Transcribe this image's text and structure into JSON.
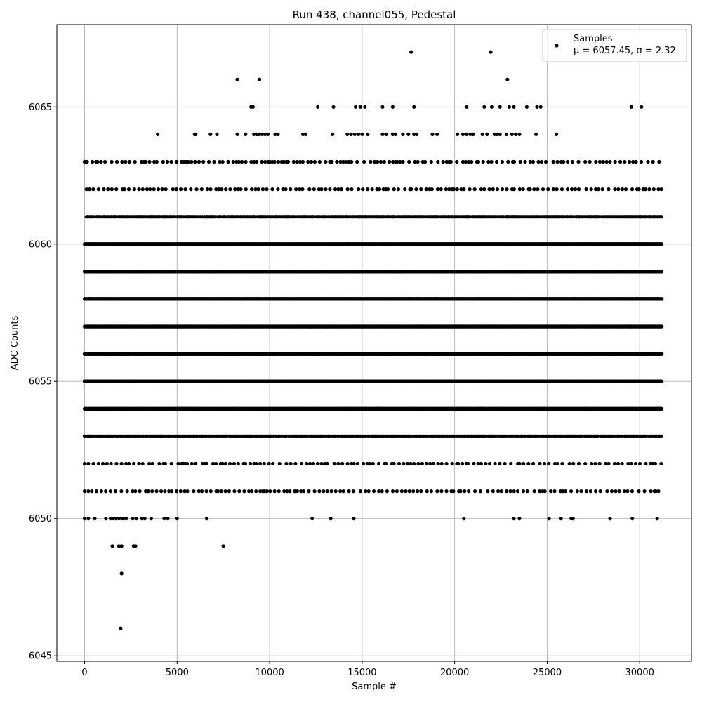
{
  "chart_data": {
    "type": "scatter",
    "title": "Run 438, channel055, Pedestal",
    "xlabel": "Sample #",
    "ylabel": "ADC Counts",
    "xlim": [
      -1500,
      32800
    ],
    "ylim": [
      6044.8,
      6068.0
    ],
    "xticks": [
      0,
      5000,
      10000,
      15000,
      20000,
      25000,
      30000
    ],
    "yticks": [
      6045,
      6050,
      6055,
      6060,
      6065
    ],
    "grid": true,
    "legend_position": "top-right",
    "marker_color": "#000000",
    "series": [
      {
        "name": "Samples",
        "stats_label": "μ = 6057.45, σ = 2.32",
        "x_range": [
          0,
          31200
        ],
        "level_bands": [
          {
            "y": 6054,
            "x_start": 0,
            "x_end": 31200,
            "density": "dense"
          },
          {
            "y": 6055,
            "x_start": 0,
            "x_end": 31200,
            "density": "dense"
          },
          {
            "y": 6056,
            "x_start": 0,
            "x_end": 31200,
            "density": "dense"
          },
          {
            "y": 6057,
            "x_start": 0,
            "x_end": 31200,
            "density": "dense"
          },
          {
            "y": 6058,
            "x_start": 0,
            "x_end": 31200,
            "density": "dense"
          },
          {
            "y": 6059,
            "x_start": 0,
            "x_end": 31200,
            "density": "dense"
          },
          {
            "y": 6060,
            "x_start": 0,
            "x_end": 31200,
            "density": "dense"
          },
          {
            "y": 6053,
            "x_start": 0,
            "x_end": 31200,
            "density": "medium"
          },
          {
            "y": 6061,
            "x_start": 100,
            "x_end": 31200,
            "density": "medium"
          },
          {
            "y": 6062,
            "x_start": 100,
            "x_end": 31200,
            "density": "sparse"
          },
          {
            "y": 6052,
            "x_start": 0,
            "x_end": 31200,
            "density": "sparse"
          },
          {
            "y": 6051,
            "x_start": 0,
            "x_end": 31200,
            "density": "sparse"
          },
          {
            "y": 6063,
            "x_start": 0,
            "x_end": 31200,
            "density": "sparse"
          }
        ],
        "points": [
          {
            "x": 0,
            "y": 6050
          },
          {
            "x": 200,
            "y": 6050
          },
          {
            "x": 550,
            "y": 6050
          },
          {
            "x": 1150,
            "y": 6050
          },
          {
            "x": 1400,
            "y": 6050
          },
          {
            "x": 1550,
            "y": 6050
          },
          {
            "x": 1700,
            "y": 6050
          },
          {
            "x": 1850,
            "y": 6050
          },
          {
            "x": 2000,
            "y": 6050
          },
          {
            "x": 2100,
            "y": 6050
          },
          {
            "x": 2250,
            "y": 6050
          },
          {
            "x": 2600,
            "y": 6050
          },
          {
            "x": 2800,
            "y": 6050
          },
          {
            "x": 3100,
            "y": 6050
          },
          {
            "x": 3250,
            "y": 6050
          },
          {
            "x": 3600,
            "y": 6050
          },
          {
            "x": 4300,
            "y": 6050
          },
          {
            "x": 4500,
            "y": 6050
          },
          {
            "x": 5000,
            "y": 6050
          },
          {
            "x": 6600,
            "y": 6050
          },
          {
            "x": 12300,
            "y": 6050
          },
          {
            "x": 13300,
            "y": 6050
          },
          {
            "x": 14550,
            "y": 6050
          },
          {
            "x": 20500,
            "y": 6050
          },
          {
            "x": 23200,
            "y": 6050
          },
          {
            "x": 23500,
            "y": 6050
          },
          {
            "x": 25100,
            "y": 6050
          },
          {
            "x": 25750,
            "y": 6050
          },
          {
            "x": 26300,
            "y": 6050
          },
          {
            "x": 26400,
            "y": 6050
          },
          {
            "x": 28400,
            "y": 6050
          },
          {
            "x": 29600,
            "y": 6050
          },
          {
            "x": 30950,
            "y": 6050
          },
          {
            "x": 1500,
            "y": 6049
          },
          {
            "x": 1850,
            "y": 6049
          },
          {
            "x": 2000,
            "y": 6049
          },
          {
            "x": 2650,
            "y": 6049
          },
          {
            "x": 2750,
            "y": 6049
          },
          {
            "x": 7500,
            "y": 6049
          },
          {
            "x": 2000,
            "y": 6048
          },
          {
            "x": 1950,
            "y": 6046
          },
          {
            "x": 100,
            "y": 6063
          },
          {
            "x": 700,
            "y": 6063
          },
          {
            "x": 3950,
            "y": 6064
          },
          {
            "x": 5950,
            "y": 6064
          },
          {
            "x": 6000,
            "y": 6064
          },
          {
            "x": 6800,
            "y": 6064
          },
          {
            "x": 7150,
            "y": 6064
          },
          {
            "x": 8250,
            "y": 6064
          },
          {
            "x": 8700,
            "y": 6064
          },
          {
            "x": 9150,
            "y": 6064
          },
          {
            "x": 9300,
            "y": 6064
          },
          {
            "x": 9450,
            "y": 6064
          },
          {
            "x": 9600,
            "y": 6064
          },
          {
            "x": 9750,
            "y": 6064
          },
          {
            "x": 9900,
            "y": 6064
          },
          {
            "x": 10300,
            "y": 6064
          },
          {
            "x": 10450,
            "y": 6064
          },
          {
            "x": 11800,
            "y": 6064
          },
          {
            "x": 11950,
            "y": 6064
          },
          {
            "x": 13400,
            "y": 6064
          },
          {
            "x": 14200,
            "y": 6064
          },
          {
            "x": 14400,
            "y": 6064
          },
          {
            "x": 14600,
            "y": 6064
          },
          {
            "x": 14800,
            "y": 6064
          },
          {
            "x": 15000,
            "y": 6064
          },
          {
            "x": 15300,
            "y": 6064
          },
          {
            "x": 16100,
            "y": 6064
          },
          {
            "x": 16300,
            "y": 6064
          },
          {
            "x": 16650,
            "y": 6064
          },
          {
            "x": 16800,
            "y": 6064
          },
          {
            "x": 17200,
            "y": 6064
          },
          {
            "x": 17500,
            "y": 6064
          },
          {
            "x": 17800,
            "y": 6064
          },
          {
            "x": 17950,
            "y": 6064
          },
          {
            "x": 18800,
            "y": 6064
          },
          {
            "x": 19050,
            "y": 6064
          },
          {
            "x": 20150,
            "y": 6064
          },
          {
            "x": 20450,
            "y": 6064
          },
          {
            "x": 20650,
            "y": 6064
          },
          {
            "x": 20850,
            "y": 6064
          },
          {
            "x": 21000,
            "y": 6064
          },
          {
            "x": 21500,
            "y": 6064
          },
          {
            "x": 21750,
            "y": 6064
          },
          {
            "x": 22150,
            "y": 6064
          },
          {
            "x": 22300,
            "y": 6064
          },
          {
            "x": 22450,
            "y": 6064
          },
          {
            "x": 22800,
            "y": 6064
          },
          {
            "x": 23100,
            "y": 6064
          },
          {
            "x": 23300,
            "y": 6064
          },
          {
            "x": 23500,
            "y": 6064
          },
          {
            "x": 24400,
            "y": 6064
          },
          {
            "x": 25500,
            "y": 6064
          },
          {
            "x": 9000,
            "y": 6065
          },
          {
            "x": 9100,
            "y": 6065
          },
          {
            "x": 12600,
            "y": 6065
          },
          {
            "x": 13450,
            "y": 6065
          },
          {
            "x": 14650,
            "y": 6065
          },
          {
            "x": 14900,
            "y": 6065
          },
          {
            "x": 15150,
            "y": 6065
          },
          {
            "x": 16100,
            "y": 6065
          },
          {
            "x": 16650,
            "y": 6065
          },
          {
            "x": 17800,
            "y": 6065
          },
          {
            "x": 20650,
            "y": 6065
          },
          {
            "x": 21600,
            "y": 6065
          },
          {
            "x": 22000,
            "y": 6065
          },
          {
            "x": 22450,
            "y": 6065
          },
          {
            "x": 22950,
            "y": 6065
          },
          {
            "x": 23200,
            "y": 6065
          },
          {
            "x": 23900,
            "y": 6065
          },
          {
            "x": 24450,
            "y": 6065
          },
          {
            "x": 24650,
            "y": 6065
          },
          {
            "x": 29550,
            "y": 6065
          },
          {
            "x": 30100,
            "y": 6065
          },
          {
            "x": 8250,
            "y": 6066
          },
          {
            "x": 9450,
            "y": 6066
          },
          {
            "x": 22850,
            "y": 6066
          },
          {
            "x": 17650,
            "y": 6067
          },
          {
            "x": 21950,
            "y": 6067
          }
        ]
      }
    ]
  }
}
